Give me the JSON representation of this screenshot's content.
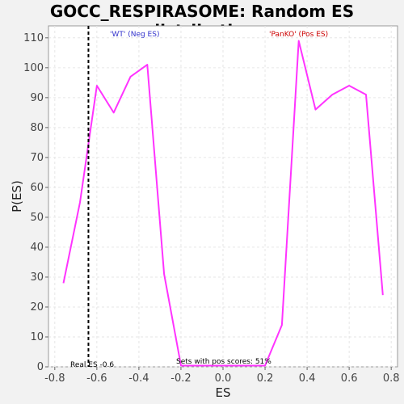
{
  "chart_data": {
    "type": "line",
    "title": "GOCC_RESPIRASOME: Random ES distribution",
    "xlabel": "ES",
    "ylabel": "P(ES)",
    "xlim": [
      -0.83,
      0.83
    ],
    "ylim": [
      0,
      114
    ],
    "x_ticks": [
      -0.8,
      -0.6,
      -0.4,
      -0.2,
      0.0,
      0.2,
      0.4,
      0.6,
      0.8
    ],
    "x_tick_labels": [
      "-0.8",
      "-0.6",
      "-0.4",
      "-0.2",
      "0.0",
      "0.2",
      "0.4",
      "0.6",
      "0.8"
    ],
    "y_ticks": [
      0,
      10,
      20,
      30,
      40,
      50,
      60,
      70,
      80,
      90,
      100,
      110
    ],
    "y_tick_labels": [
      "0",
      "10",
      "20",
      "30",
      "40",
      "50",
      "60",
      "70",
      "80",
      "90",
      "100",
      "110"
    ],
    "grid": true,
    "series": [
      {
        "color": "#ff33ff",
        "x": [
          -0.759,
          -0.68,
          -0.6,
          -0.52,
          -0.44,
          -0.36,
          -0.28,
          -0.2,
          -0.12,
          -0.04,
          0.04,
          0.12,
          0.2,
          0.28,
          0.36,
          0.44,
          0.52,
          0.6,
          0.68,
          0.76
        ],
        "y": [
          28,
          55,
          94,
          85,
          97,
          101,
          31,
          0.4,
          0.4,
          0.4,
          0.4,
          0.4,
          0.4,
          14,
          109,
          86,
          91,
          94,
          91,
          24
        ]
      }
    ],
    "real_es": -0.64,
    "annotations": {
      "neg_label": "'WT' (Neg ES)",
      "neg_color": "#3333cc",
      "pos_label": "'PanKO' (Pos ES)",
      "pos_color": "#cc0000",
      "real_es_label": "Real ES -0.6",
      "pos_scores_label": "Sets with pos scores: 51%"
    }
  }
}
